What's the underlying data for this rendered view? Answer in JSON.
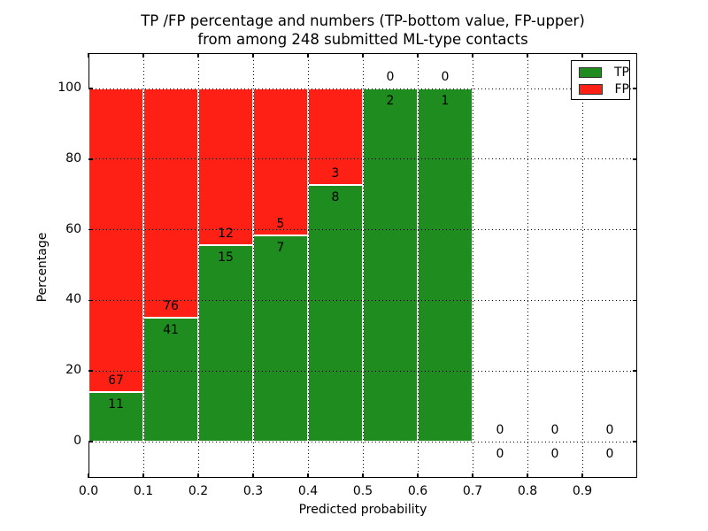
{
  "title": {
    "line1": "TP /FP percentage and numbers (TP-bottom value, FP-upper)",
    "line2": "from among 248 submitted ML-type contacts"
  },
  "axes": {
    "xlabel": "Predicted probability",
    "ylabel": "Percentage"
  },
  "legend": {
    "position": "upper right",
    "items": [
      {
        "label": "TP",
        "color": "#1e8c1e"
      },
      {
        "label": "FP",
        "color": "#ff2015"
      }
    ]
  },
  "chart_data": {
    "type": "bar",
    "stacked": true,
    "title": "TP /FP percentage and numbers (TP-bottom value, FP-upper) from among 248 submitted ML-type contacts",
    "xlabel": "Predicted probability",
    "ylabel": "Percentage",
    "total_contacts": 248,
    "bins_start": [
      0.0,
      0.1,
      0.2,
      0.3,
      0.4,
      0.5,
      0.6,
      0.7,
      0.8,
      0.9
    ],
    "bin_width": 0.1,
    "series": [
      {
        "name": "TP",
        "position": "bottom",
        "color": "#1e8c1e",
        "counts": [
          11,
          41,
          15,
          7,
          8,
          2,
          1,
          0,
          0,
          0
        ]
      },
      {
        "name": "FP",
        "position": "top",
        "color": "#ff2015",
        "counts": [
          67,
          76,
          12,
          5,
          3,
          0,
          0,
          0,
          0,
          0
        ]
      }
    ],
    "tp_percent_per_bin": [
      14.1,
      35.0,
      55.6,
      58.3,
      72.7,
      100.0,
      100.0,
      0.0,
      0.0,
      0.0
    ],
    "x_tick_labels": [
      "0.0",
      "0.1",
      "0.2",
      "0.3",
      "0.4",
      "0.5",
      "0.6",
      "0.7",
      "0.8",
      "0.9"
    ],
    "x_tick_values": [
      0.0,
      0.1,
      0.2,
      0.3,
      0.4,
      0.5,
      0.6,
      0.7,
      0.8,
      0.9
    ],
    "y_tick_labels": [
      "0",
      "20",
      "40",
      "60",
      "80",
      "100"
    ],
    "y_tick_values": [
      0,
      20,
      40,
      60,
      80,
      100
    ],
    "xlim": [
      0.0,
      1.0
    ],
    "ylim": [
      -10.5,
      110.5
    ],
    "grid": "dotted",
    "legend_position": "upper right"
  }
}
